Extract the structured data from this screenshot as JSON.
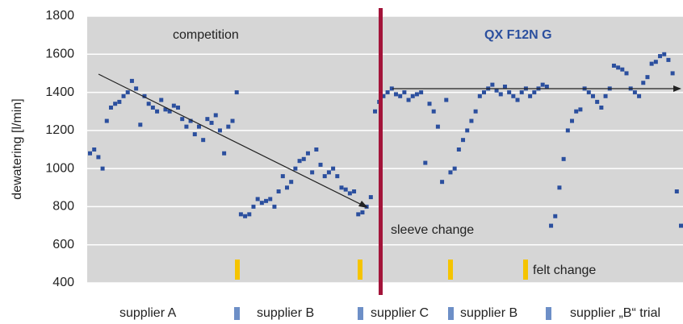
{
  "chart_data": {
    "type": "scatter",
    "y_label": "dewatering [l/min]",
    "color": "#2b4f9e",
    "annotations": {
      "left": "competition",
      "right": "QX F12N G",
      "sleeve": "sleeve change",
      "felt": "felt change"
    },
    "suppliers": [
      "supplier A",
      "supplier B",
      "supplier C",
      "supplier B",
      "supplier „B“ trial"
    ],
    "ylim": [
      400,
      1800
    ],
    "yticks": [
      400,
      600,
      800,
      1000,
      1200,
      1400,
      1600,
      1800
    ],
    "grid": true,
    "values": [
      1080,
      1100,
      1060,
      1000,
      1250,
      1320,
      1340,
      1350,
      1380,
      1400,
      1460,
      1420,
      1230,
      1380,
      1340,
      1320,
      1300,
      1360,
      1310,
      1300,
      1330,
      1320,
      1260,
      1220,
      1250,
      1180,
      1220,
      1150,
      1260,
      1240,
      1280,
      1200,
      1080,
      1220,
      1250,
      1400,
      760,
      750,
      760,
      800,
      840,
      820,
      830,
      840,
      800,
      880,
      960,
      900,
      930,
      1000,
      1040,
      1050,
      1080,
      980,
      1100,
      1020,
      960,
      980,
      1000,
      960,
      900,
      890,
      870,
      880,
      760,
      770,
      800,
      850,
      1300,
      1350,
      1380,
      1400,
      1420,
      1390,
      1380,
      1400,
      1360,
      1380,
      1390,
      1400,
      1030,
      1340,
      1300,
      1220,
      930,
      1360,
      980,
      1000,
      1100,
      1150,
      1200,
      1250,
      1300,
      1380,
      1400,
      1420,
      1440,
      1410,
      1390,
      1430,
      1400,
      1380,
      1360,
      1400,
      1420,
      1380,
      1400,
      1420,
      1440,
      1430,
      700,
      750,
      900,
      1050,
      1200,
      1250,
      1300,
      1310,
      1420,
      1400,
      1380,
      1350,
      1320,
      1380,
      1420,
      1540,
      1530,
      1520,
      1500,
      1420,
      1400,
      1380,
      1450,
      1480,
      1550,
      1560,
      1590,
      1600,
      1570,
      1500,
      880,
      700
    ]
  }
}
